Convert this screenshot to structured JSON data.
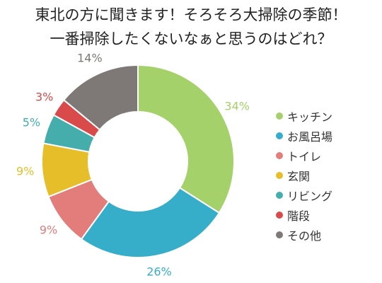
{
  "chart_data": {
    "type": "pie",
    "title": [
      "東北の方に聞きます！そろそろ大掃除の季節！",
      "一番掃除したくないなぁと思うのはどれ？"
    ],
    "categories": [
      "キッチン",
      "お風呂場",
      "トイレ",
      "玄関",
      "リビング",
      "階段",
      "その他"
    ],
    "values": [
      34,
      26,
      9,
      9,
      5,
      3,
      14
    ],
    "value_labels": [
      "34%",
      "26%",
      "9%",
      "9%",
      "5%",
      "3%",
      "14%"
    ],
    "colors": [
      "#a5d16a",
      "#36adc9",
      "#e27d7b",
      "#e5be2a",
      "#45adac",
      "#d94a4a",
      "#7e7976"
    ],
    "donut": true,
    "legend_position": "right"
  }
}
